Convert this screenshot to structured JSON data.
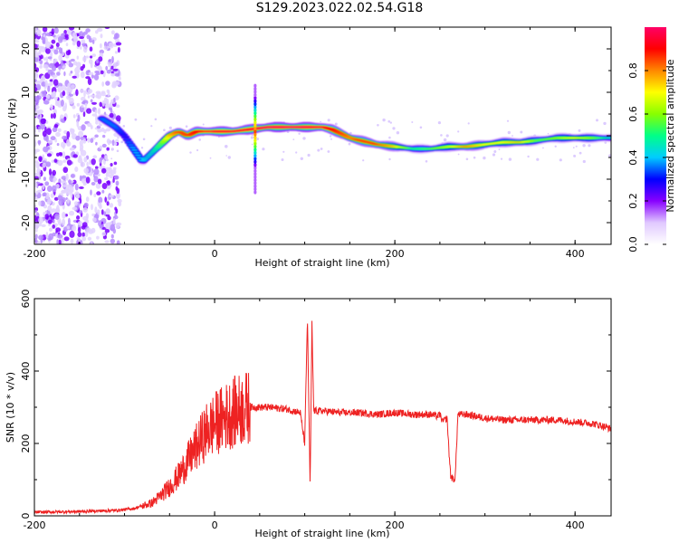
{
  "title": "S129.2023.022.02.54.G18",
  "chart_data": [
    {
      "type": "heatmap",
      "xlabel": "Height of straight line (km)",
      "ylabel": "Frequency (Hz)",
      "xlim": [
        -200,
        440
      ],
      "ylim": [
        -25,
        25
      ],
      "x_ticks": [
        -200,
        0,
        200,
        400
      ],
      "y_ticks": [
        -20,
        -10,
        0,
        10,
        20
      ],
      "colorbar": {
        "label": "Normalized spectral amplitude",
        "range": [
          0,
          1
        ],
        "ticks": [
          0.0,
          0.2,
          0.4,
          0.6,
          0.8
        ],
        "colors": [
          "#ffffff",
          "#e0c8ff",
          "#8800ff",
          "#0000ff",
          "#00ccff",
          "#00ff88",
          "#88ff00",
          "#ffff00",
          "#ff8800",
          "#ff0000",
          "#ff0066"
        ]
      },
      "ridge": {
        "x": [
          -125,
          -110,
          -100,
          -90,
          -80,
          -70,
          -60,
          -50,
          -40,
          -30,
          -20,
          0,
          20,
          40,
          60,
          80,
          100,
          120,
          130,
          140,
          150,
          160,
          170,
          180,
          200,
          220,
          240,
          260,
          280,
          300,
          320,
          340,
          360,
          380,
          400,
          420,
          440
        ],
        "frequency": [
          4,
          2,
          0,
          -3,
          -6,
          -4,
          -2,
          0,
          1,
          0,
          1,
          1,
          1,
          1.5,
          2,
          2,
          2,
          2,
          1.5,
          0.5,
          -0.5,
          -1,
          -1.5,
          -2,
          -2.5,
          -3,
          -3,
          -2.5,
          -2.5,
          -2,
          -1.5,
          -1.5,
          -1,
          -0.5,
          -0.5,
          -0.5,
          -0.5
        ],
        "amplitude": [
          0.35,
          0.35,
          0.3,
          0.4,
          0.4,
          0.45,
          0.55,
          0.75,
          0.85,
          0.85,
          0.9,
          0.95,
          0.95,
          0.95,
          1.0,
          1.0,
          1.0,
          0.95,
          0.9,
          0.85,
          0.8,
          0.85,
          0.85,
          0.85,
          0.75,
          0.5,
          0.55,
          0.65,
          0.8,
          0.7,
          0.7,
          0.75,
          0.55,
          0.6,
          0.7,
          0.6,
          0.45
        ]
      },
      "spike": {
        "x": 45,
        "frequency_range": [
          -13,
          12
        ]
      }
    },
    {
      "type": "line",
      "xlabel": "Height of straight line (km)",
      "ylabel": "SNR (10 * v/v)",
      "xlim": [
        -200,
        440
      ],
      "ylim": [
        0,
        600
      ],
      "x_ticks": [
        -200,
        0,
        200,
        400
      ],
      "y_ticks": [
        0,
        200,
        400,
        600
      ],
      "color": "#ee2222",
      "series": [
        {
          "x": [
            -200,
            -150,
            -110,
            -90,
            -70,
            -60,
            -50,
            -40,
            -30,
            -20,
            -10,
            0,
            10,
            20,
            30,
            40,
            60,
            80,
            95,
            100,
            103,
            106,
            108,
            110,
            120,
            140,
            160,
            180,
            200,
            220,
            240,
            247,
            250,
            253,
            258,
            260,
            262,
            265,
            267,
            270,
            280,
            300,
            320,
            340,
            360,
            380,
            400,
            420,
            435,
            440
          ],
          "y": [
            10,
            12,
            15,
            20,
            35,
            55,
            80,
            110,
            150,
            190,
            230,
            255,
            270,
            285,
            295,
            300,
            300,
            295,
            285,
            200,
            550,
            75,
            530,
            290,
            290,
            285,
            285,
            280,
            285,
            280,
            280,
            275,
            280,
            260,
            270,
            180,
            110,
            100,
            105,
            280,
            280,
            270,
            265,
            265,
            265,
            265,
            260,
            255,
            245,
            240
          ]
        }
      ]
    }
  ]
}
